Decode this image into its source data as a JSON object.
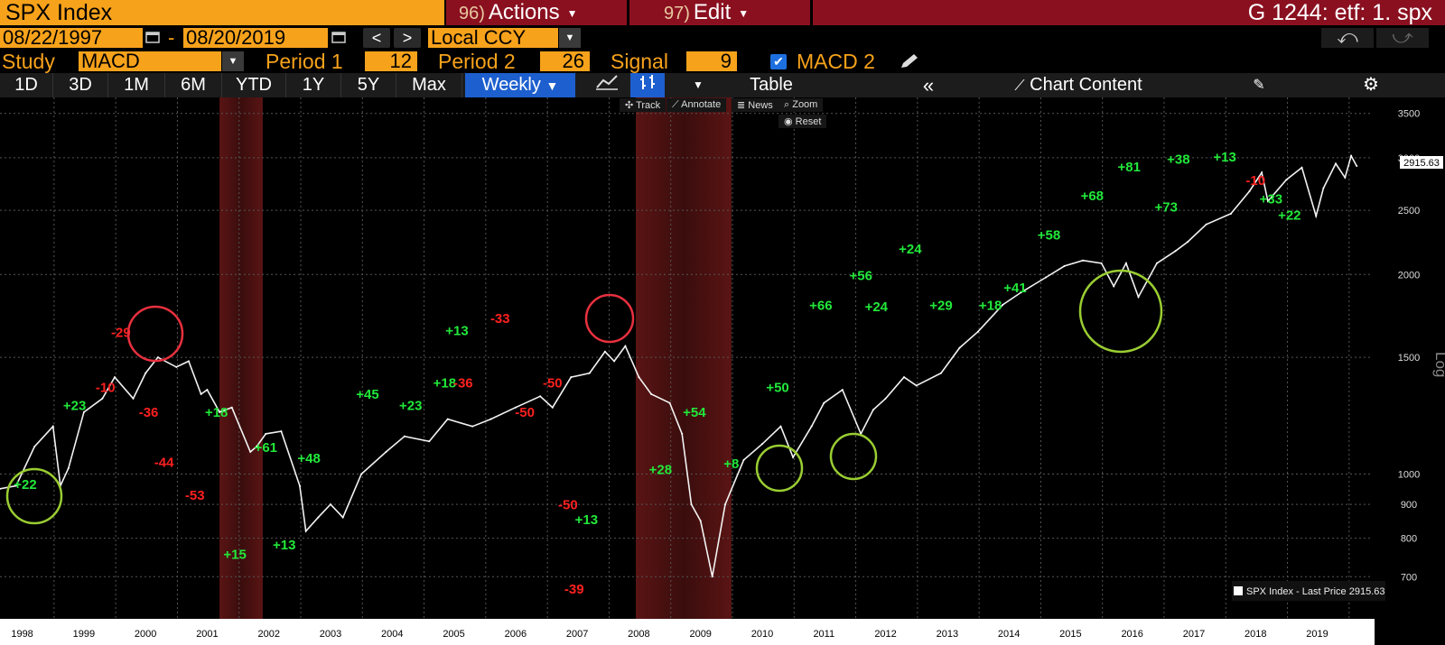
{
  "header": {
    "security": "SPX Index",
    "actions": {
      "num": "96)",
      "label": "Actions"
    },
    "edit": {
      "num": "97)",
      "label": "Edit"
    },
    "right": "G 1244: etf: 1. spx"
  },
  "range": {
    "start": "08/22/1997",
    "dash": "-",
    "end": "08/20/2019",
    "currency": "Local CCY"
  },
  "study": {
    "label": "Study",
    "name": "MACD",
    "p1_label": "Period 1",
    "p1": "12",
    "p2_label": "Period 2",
    "p2": "26",
    "sig_label": "Signal",
    "sig": "9",
    "macd2_label": "MACD 2"
  },
  "toolbar": {
    "periods": [
      "1D",
      "3D",
      "1M",
      "6M",
      "YTD",
      "1Y",
      "5Y",
      "Max"
    ],
    "frequency": "Weekly",
    "table": "Table",
    "chart_content": "Chart Content"
  },
  "mini": {
    "track": "Track",
    "annotate": "Annotate",
    "news": "News",
    "zoom": "Zoom",
    "reset": "Reset"
  },
  "chart_data": {
    "type": "line",
    "scale": "log",
    "ylabel": "Log",
    "ylim": [
      620,
      3700
    ],
    "yticks": [
      700,
      800,
      900,
      1000,
      1500,
      2000,
      2500,
      3000,
      3500
    ],
    "xlim": [
      1997.64,
      2019.9
    ],
    "x_tick_labels": [
      "1998",
      "1999",
      "2000",
      "2001",
      "2002",
      "2003",
      "2004",
      "2005",
      "2006",
      "2007",
      "2008",
      "2009",
      "2010",
      "2011",
      "2012",
      "2013",
      "2014",
      "2015",
      "2016",
      "2017",
      "2018",
      "2019"
    ],
    "last_price": "2915.63",
    "legend": "SPX Index - Last Price 2915.63",
    "recessions": [
      [
        2001.2,
        2001.9
      ],
      [
        2007.95,
        2009.5
      ]
    ],
    "series": [
      {
        "x": [
          1997.64,
          1997.9,
          1998.2,
          1998.5,
          1998.62,
          1998.75,
          1999.0,
          1999.3,
          1999.5,
          1999.8,
          2000.0,
          2000.2,
          2000.5,
          2000.7,
          2000.9,
          2001.0,
          2001.2,
          2001.4,
          2001.7,
          2001.8,
          2001.95,
          2002.2,
          2002.5,
          2002.6,
          2002.8,
          2003.0,
          2003.2,
          2003.5,
          2003.9,
          2004.2,
          2004.6,
          2004.9,
          2005.3,
          2005.6,
          2006.0,
          2006.4,
          2006.6,
          2006.9,
          2007.2,
          2007.45,
          2007.6,
          2007.78,
          2008.0,
          2008.2,
          2008.5,
          2008.7,
          2008.85,
          2009.0,
          2009.19,
          2009.4,
          2009.7,
          2010.0,
          2010.3,
          2010.5,
          2010.8,
          2011.0,
          2011.3,
          2011.6,
          2011.8,
          2012.0,
          2012.3,
          2012.5,
          2012.9,
          2013.2,
          2013.5,
          2013.9,
          2014.2,
          2014.6,
          2014.9,
          2015.2,
          2015.5,
          2015.7,
          2015.9,
          2016.1,
          2016.4,
          2016.7,
          2016.9,
          2017.2,
          2017.6,
          2017.9,
          2018.1,
          2018.2,
          2018.5,
          2018.75,
          2018.98,
          2019.1,
          2019.3,
          2019.45,
          2019.55,
          2019.64
        ],
        "y": [
          950,
          960,
          1100,
          1180,
          960,
          1020,
          1240,
          1300,
          1400,
          1300,
          1420,
          1500,
          1450,
          1480,
          1320,
          1340,
          1240,
          1260,
          1080,
          1100,
          1150,
          1160,
          960,
          820,
          860,
          900,
          860,
          1000,
          1080,
          1140,
          1120,
          1210,
          1180,
          1210,
          1260,
          1310,
          1260,
          1400,
          1420,
          1530,
          1480,
          1560,
          1400,
          1320,
          1280,
          1150,
          900,
          850,
          700,
          900,
          1050,
          1110,
          1180,
          1060,
          1180,
          1280,
          1340,
          1150,
          1250,
          1300,
          1400,
          1360,
          1420,
          1550,
          1640,
          1800,
          1880,
          1980,
          2060,
          2100,
          2080,
          1920,
          2080,
          1850,
          2080,
          2170,
          2240,
          2380,
          2470,
          2670,
          2850,
          2580,
          2780,
          2900,
          2450,
          2700,
          2940,
          2800,
          3020,
          2915.63
        ]
      }
    ],
    "annotations": [
      {
        "x": 1998.05,
        "y": 950,
        "text": "+22"
      },
      {
        "x": 1998.85,
        "y": 1250,
        "text": "+23"
      },
      {
        "x": 1999.35,
        "y": 1330,
        "text": "-10"
      },
      {
        "x": 1999.6,
        "y": 1610,
        "text": "-29"
      },
      {
        "x": 2000.05,
        "y": 1220,
        "text": "-36"
      },
      {
        "x": 2000.3,
        "y": 1025,
        "text": "-44"
      },
      {
        "x": 2000.8,
        "y": 915,
        "text": "-53"
      },
      {
        "x": 2001.15,
        "y": 1220,
        "text": "+18"
      },
      {
        "x": 2001.95,
        "y": 1080,
        "text": "+61"
      },
      {
        "x": 2001.45,
        "y": 745,
        "text": "+15"
      },
      {
        "x": 2002.25,
        "y": 770,
        "text": "+13"
      },
      {
        "x": 2002.65,
        "y": 1040,
        "text": "+48"
      },
      {
        "x": 2003.6,
        "y": 1300,
        "text": "+45"
      },
      {
        "x": 2004.3,
        "y": 1250,
        "text": "+23"
      },
      {
        "x": 2004.85,
        "y": 1350,
        "text": "+18"
      },
      {
        "x": 2005.05,
        "y": 1620,
        "text": "+13"
      },
      {
        "x": 2005.15,
        "y": 1350,
        "text": "-36"
      },
      {
        "x": 2005.75,
        "y": 1690,
        "text": "-33"
      },
      {
        "x": 2006.15,
        "y": 1220,
        "text": "-50"
      },
      {
        "x": 2006.6,
        "y": 1350,
        "text": "-50"
      },
      {
        "x": 2006.85,
        "y": 885,
        "text": "-50"
      },
      {
        "x": 2007.15,
        "y": 840,
        "text": "+13"
      },
      {
        "x": 2006.95,
        "y": 660,
        "text": "-39"
      },
      {
        "x": 2008.35,
        "y": 1000,
        "text": "+28"
      },
      {
        "x": 2008.9,
        "y": 1220,
        "text": "+54"
      },
      {
        "x": 2009.5,
        "y": 1020,
        "text": "+8"
      },
      {
        "x": 2010.25,
        "y": 1330,
        "text": "+50"
      },
      {
        "x": 2010.95,
        "y": 1770,
        "text": "+66"
      },
      {
        "x": 2011.6,
        "y": 1960,
        "text": "+56"
      },
      {
        "x": 2011.85,
        "y": 1760,
        "text": "+24"
      },
      {
        "x": 2012.4,
        "y": 2150,
        "text": "+24"
      },
      {
        "x": 2012.9,
        "y": 1770,
        "text": "+29"
      },
      {
        "x": 2013.7,
        "y": 1770,
        "text": "+18"
      },
      {
        "x": 2014.1,
        "y": 1880,
        "text": "+41"
      },
      {
        "x": 2014.65,
        "y": 2260,
        "text": "+58"
      },
      {
        "x": 2015.35,
        "y": 2590,
        "text": "+68"
      },
      {
        "x": 2015.95,
        "y": 2860,
        "text": "+81"
      },
      {
        "x": 2016.55,
        "y": 2490,
        "text": "+73"
      },
      {
        "x": 2016.75,
        "y": 2940,
        "text": "+38"
      },
      {
        "x": 2017.5,
        "y": 2960,
        "text": "+13"
      },
      {
        "x": 2018.0,
        "y": 2730,
        "text": "-10"
      },
      {
        "x": 2018.25,
        "y": 2560,
        "text": "+33"
      },
      {
        "x": 2018.55,
        "y": 2420,
        "text": "+22"
      }
    ]
  }
}
